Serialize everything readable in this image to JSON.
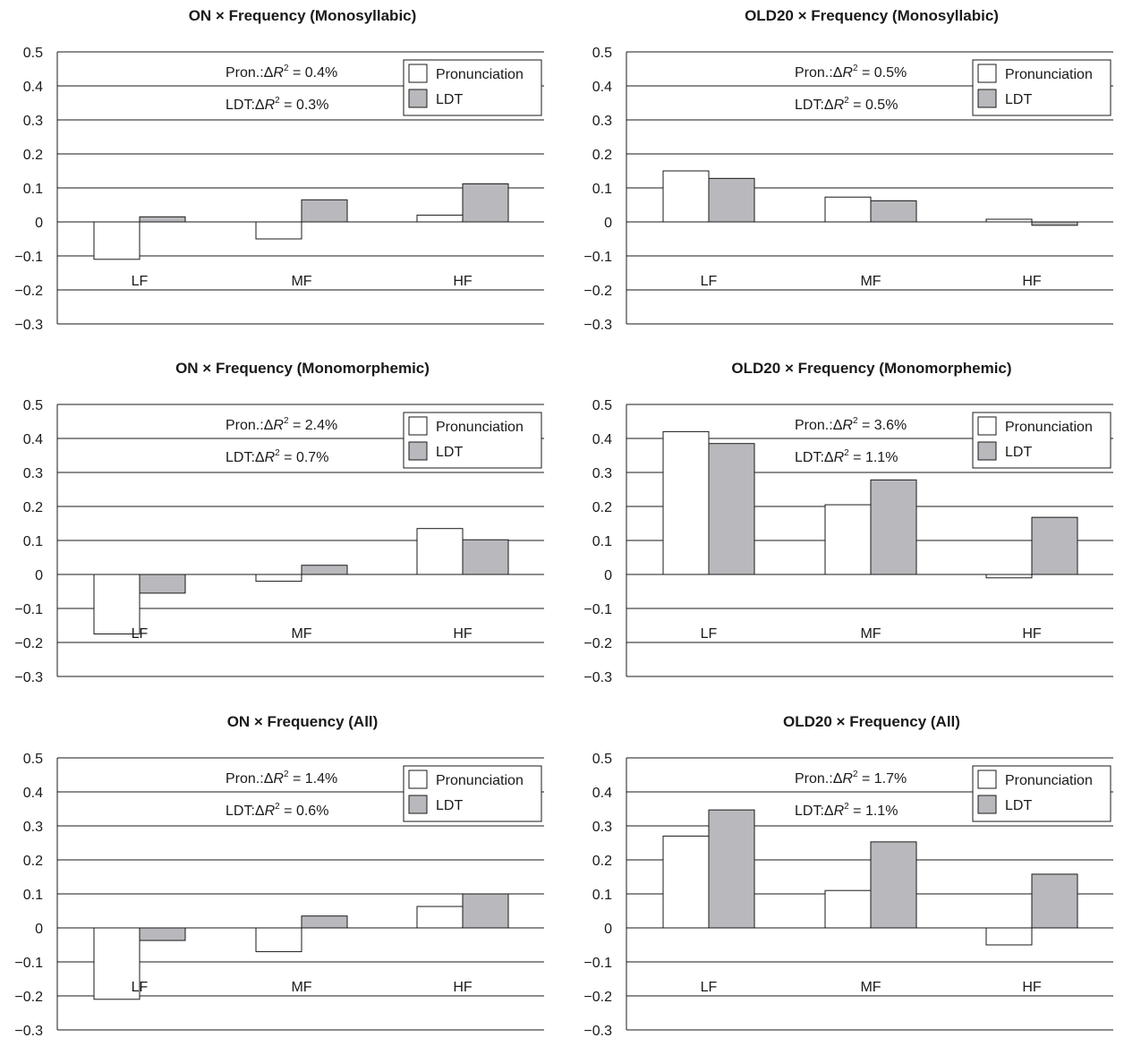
{
  "colors": {
    "pron": "#ffffff",
    "ldt": "#b9b9bd",
    "line": "#1a1a1a"
  },
  "chart_data": [
    {
      "type": "bar",
      "title": "ON × Frequency (Monosyllabic)",
      "categories": [
        "LF",
        "MF",
        "HF"
      ],
      "series": [
        {
          "name": "Pronunciation",
          "values": [
            -0.11,
            -0.05,
            0.02
          ]
        },
        {
          "name": "LDT",
          "values": [
            0.015,
            0.065,
            0.112
          ]
        }
      ],
      "ylim": [
        -0.3,
        0.5
      ],
      "yticks": [
        "0.5",
        "0.4",
        "0.3",
        "0.2",
        "0.1",
        "0",
        "−0.1",
        "−0.2",
        "−0.3"
      ],
      "annotations": {
        "pron_prefix": "Pron.:",
        "pron_value": " = 0.4%",
        "ldt_prefix": "LDT:",
        "ldt_value": " = 0.3%"
      },
      "legend_position": "top-right",
      "grid": true
    },
    {
      "type": "bar",
      "title": "OLD20 × Frequency (Monosyllabic)",
      "categories": [
        "LF",
        "MF",
        "HF"
      ],
      "series": [
        {
          "name": "Pronunciation",
          "values": [
            0.15,
            0.073,
            0.0
          ]
        },
        {
          "name": "LDT",
          "values": [
            0.128,
            0.062,
            -0.01
          ]
        }
      ],
      "ylim": [
        -0.3,
        0.5
      ],
      "yticks": [
        "0.5",
        "0.4",
        "0.3",
        "0.2",
        "0.1",
        "0",
        "−0.1",
        "−0.2",
        "−0.3"
      ],
      "annotations": {
        "pron_prefix": "Pron.:",
        "pron_value": " = 0.5%",
        "ldt_prefix": "LDT:",
        "ldt_value": " = 0.5%"
      },
      "legend_position": "top-right",
      "grid": true
    },
    {
      "type": "bar",
      "title": "ON × Frequency (Monomorphemic)",
      "categories": [
        "LF",
        "MF",
        "HF"
      ],
      "series": [
        {
          "name": "Pronunciation",
          "values": [
            -0.175,
            -0.02,
            0.135
          ]
        },
        {
          "name": "LDT",
          "values": [
            -0.055,
            0.027,
            0.102
          ]
        }
      ],
      "ylim": [
        -0.3,
        0.5
      ],
      "yticks": [
        "0.5",
        "0.4",
        "0.3",
        "0.2",
        "0.1",
        "0",
        "−0.1",
        "−0.2",
        "−0.3"
      ],
      "annotations": {
        "pron_prefix": "Pron.:",
        "pron_value": " = 2.4%",
        "ldt_prefix": "LDT:",
        "ldt_value": " = 0.7%"
      },
      "legend_position": "top-right",
      "grid": true
    },
    {
      "type": "bar",
      "title": "OLD20 × Frequency (Monomorphemic)",
      "categories": [
        "LF",
        "MF",
        "HF"
      ],
      "series": [
        {
          "name": "Pronunciation",
          "values": [
            0.42,
            0.205,
            -0.01
          ]
        },
        {
          "name": "LDT",
          "values": [
            0.385,
            0.278,
            0.168
          ]
        }
      ],
      "ylim": [
        -0.3,
        0.5
      ],
      "yticks": [
        "0.5",
        "0.4",
        "0.3",
        "0.2",
        "0.1",
        "0",
        "−0.1",
        "−0.2",
        "−0.3"
      ],
      "annotations": {
        "pron_prefix": "Pron.:",
        "pron_value": " = 3.6%",
        "ldt_prefix": "LDT:",
        "ldt_value": " = 1.1%"
      },
      "legend_position": "top-right",
      "grid": true
    },
    {
      "type": "bar",
      "title": "ON × Frequency (All)",
      "categories": [
        "LF",
        "MF",
        "HF"
      ],
      "series": [
        {
          "name": "Pronunciation",
          "values": [
            -0.21,
            -0.07,
            0.063
          ]
        },
        {
          "name": "LDT",
          "values": [
            -0.037,
            0.035,
            0.1
          ]
        }
      ],
      "ylim": [
        -0.3,
        0.5
      ],
      "yticks": [
        "0.5",
        "0.4",
        "0.3",
        "0.2",
        "0.1",
        "0",
        "−0.1",
        "−0.2",
        "−0.3"
      ],
      "annotations": {
        "pron_prefix": "Pron.:",
        "pron_value": " = 1.4%",
        "ldt_prefix": "LDT:",
        "ldt_value": " = 0.6%"
      },
      "legend_position": "top-right",
      "grid": true
    },
    {
      "type": "bar",
      "title": "OLD20 × Frequency (All)",
      "categories": [
        "LF",
        "MF",
        "HF"
      ],
      "series": [
        {
          "name": "Pronunciation",
          "values": [
            0.27,
            0.11,
            -0.05
          ]
        },
        {
          "name": "LDT",
          "values": [
            0.347,
            0.253,
            0.158
          ]
        }
      ],
      "ylim": [
        -0.3,
        0.5
      ],
      "yticks": [
        "0.5",
        "0.4",
        "0.3",
        "0.2",
        "0.1",
        "0",
        "−0.1",
        "−0.2",
        "−0.3"
      ],
      "annotations": {
        "pron_prefix": "Pron.:",
        "pron_value": " = 1.7%",
        "ldt_prefix": "LDT:",
        "ldt_value": " = 1.1%"
      },
      "legend_position": "top-right",
      "grid": true
    }
  ]
}
